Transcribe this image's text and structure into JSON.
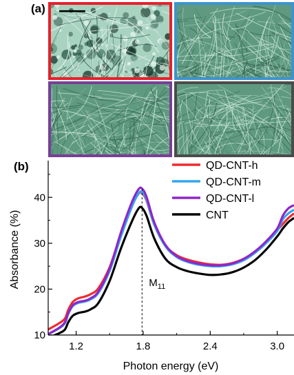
{
  "panel_a": {
    "label": "(a)",
    "tiles": [
      {
        "name": "micrograph-top-left",
        "border_color": "#e8202a"
      },
      {
        "name": "micrograph-top-right",
        "border_color": "#3d93cf"
      },
      {
        "name": "micrograph-bottom-left",
        "border_color": "#7a3e96"
      },
      {
        "name": "micrograph-bottom-right",
        "border_color": "#4b4b4b"
      }
    ]
  },
  "panel_b": {
    "label": "(b)"
  },
  "chart_data": {
    "type": "line",
    "xlabel": "Photon energy (eV)",
    "ylabel": "Absorbance (%)",
    "xlim": [
      0.95,
      3.15
    ],
    "ylim": [
      10,
      48
    ],
    "xticks": [
      1.2,
      1.8,
      2.4,
      3.0
    ],
    "xtick_labels": [
      "1.2",
      "1.8",
      "2.4",
      "3.0"
    ],
    "yticks": [
      10,
      20,
      30,
      40
    ],
    "ytick_labels": [
      "10",
      "20",
      "30",
      "40"
    ],
    "grid": false,
    "legend_position": "top-right",
    "annotation": {
      "text": "M",
      "subscript": "11",
      "x": 1.79
    },
    "series": [
      {
        "name": "QD-CNT-h",
        "color": "#ee2b2f",
        "points": [
          [
            0.95,
            11.2
          ],
          [
            1.05,
            12.6
          ],
          [
            1.1,
            13.6
          ],
          [
            1.13,
            15.5
          ],
          [
            1.17,
            17.2
          ],
          [
            1.22,
            18.0
          ],
          [
            1.28,
            18.4
          ],
          [
            1.33,
            18.9
          ],
          [
            1.4,
            20.2
          ],
          [
            1.5,
            24.8
          ],
          [
            1.6,
            32.0
          ],
          [
            1.7,
            38.2
          ],
          [
            1.76,
            40.8
          ],
          [
            1.79,
            40.9
          ],
          [
            1.83,
            39.3
          ],
          [
            1.9,
            34.0
          ],
          [
            2.0,
            29.5
          ],
          [
            2.1,
            27.4
          ],
          [
            2.2,
            26.4
          ],
          [
            2.3,
            25.8
          ],
          [
            2.4,
            25.4
          ],
          [
            2.5,
            25.3
          ],
          [
            2.6,
            25.7
          ],
          [
            2.7,
            26.6
          ],
          [
            2.8,
            28.1
          ],
          [
            2.9,
            30.2
          ],
          [
            3.0,
            32.8
          ],
          [
            3.05,
            34.2
          ],
          [
            3.1,
            35.5
          ],
          [
            3.15,
            36.5
          ]
        ]
      },
      {
        "name": "QD-CNT-m",
        "color": "#33a5f0",
        "points": [
          [
            0.95,
            10.2
          ],
          [
            1.05,
            11.5
          ],
          [
            1.1,
            12.6
          ],
          [
            1.13,
            14.6
          ],
          [
            1.17,
            16.3
          ],
          [
            1.22,
            17.0
          ],
          [
            1.28,
            17.3
          ],
          [
            1.33,
            17.8
          ],
          [
            1.4,
            19.2
          ],
          [
            1.5,
            24.0
          ],
          [
            1.6,
            31.4
          ],
          [
            1.7,
            38.0
          ],
          [
            1.76,
            40.9
          ],
          [
            1.79,
            41.1
          ],
          [
            1.83,
            39.5
          ],
          [
            1.9,
            34.0
          ],
          [
            2.0,
            29.3
          ],
          [
            2.1,
            27.0
          ],
          [
            2.2,
            25.9
          ],
          [
            2.3,
            25.3
          ],
          [
            2.4,
            25.0
          ],
          [
            2.5,
            25.0
          ],
          [
            2.6,
            25.4
          ],
          [
            2.7,
            26.3
          ],
          [
            2.8,
            27.9
          ],
          [
            2.9,
            30.0
          ],
          [
            3.0,
            32.7
          ],
          [
            3.05,
            35.2
          ],
          [
            3.1,
            36.5
          ],
          [
            3.15,
            37.3
          ]
        ]
      },
      {
        "name": "QD-CNT-l",
        "color": "#8f27c8",
        "points": [
          [
            0.95,
            10.2
          ],
          [
            1.05,
            11.6
          ],
          [
            1.1,
            12.8
          ],
          [
            1.13,
            14.8
          ],
          [
            1.17,
            16.5
          ],
          [
            1.22,
            17.2
          ],
          [
            1.28,
            17.5
          ],
          [
            1.33,
            18.0
          ],
          [
            1.4,
            19.5
          ],
          [
            1.5,
            24.5
          ],
          [
            1.6,
            32.3
          ],
          [
            1.7,
            39.0
          ],
          [
            1.76,
            41.8
          ],
          [
            1.79,
            41.9
          ],
          [
            1.83,
            40.1
          ],
          [
            1.9,
            34.5
          ],
          [
            2.0,
            29.6
          ],
          [
            2.1,
            27.2
          ],
          [
            2.2,
            26.1
          ],
          [
            2.3,
            25.5
          ],
          [
            2.4,
            25.2
          ],
          [
            2.5,
            25.2
          ],
          [
            2.6,
            25.6
          ],
          [
            2.7,
            26.6
          ],
          [
            2.8,
            28.2
          ],
          [
            2.9,
            30.4
          ],
          [
            3.0,
            33.2
          ],
          [
            3.05,
            36.0
          ],
          [
            3.1,
            37.6
          ],
          [
            3.15,
            38.3
          ]
        ]
      },
      {
        "name": "CNT",
        "color": "#000000",
        "points": [
          [
            0.95,
            9.4
          ],
          [
            1.05,
            10.4
          ],
          [
            1.1,
            11.2
          ],
          [
            1.13,
            12.8
          ],
          [
            1.17,
            14.2
          ],
          [
            1.22,
            14.8
          ],
          [
            1.28,
            15.1
          ],
          [
            1.33,
            15.6
          ],
          [
            1.4,
            17.0
          ],
          [
            1.5,
            21.8
          ],
          [
            1.6,
            28.8
          ],
          [
            1.7,
            34.8
          ],
          [
            1.76,
            37.6
          ],
          [
            1.79,
            37.7
          ],
          [
            1.83,
            36.0
          ],
          [
            1.9,
            31.0
          ],
          [
            2.0,
            26.6
          ],
          [
            2.1,
            24.8
          ],
          [
            2.2,
            23.9
          ],
          [
            2.3,
            23.4
          ],
          [
            2.4,
            23.1
          ],
          [
            2.5,
            23.2
          ],
          [
            2.6,
            23.7
          ],
          [
            2.7,
            24.7
          ],
          [
            2.8,
            26.3
          ],
          [
            2.9,
            28.6
          ],
          [
            3.0,
            31.5
          ],
          [
            3.05,
            33.2
          ],
          [
            3.1,
            34.6
          ],
          [
            3.15,
            35.5
          ]
        ]
      }
    ]
  }
}
